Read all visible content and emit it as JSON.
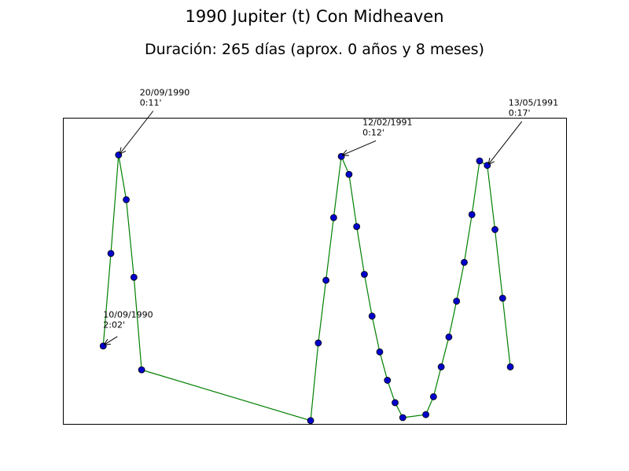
{
  "chart_data": {
    "type": "line",
    "title": "1990 Jupiter (t) Con Midheaven",
    "subtitle": "Duración: 265 días (aprox. 0 años y 8 meses)",
    "xlabel": "",
    "ylabel": "",
    "grid": false,
    "legend": "none",
    "x_axis": {
      "ticks_visible": false
    },
    "y_axis": {
      "ticks_visible": false
    },
    "series": [
      {
        "line_color": "#008000",
        "marker_color": "#0000cc",
        "points": [
          {
            "x": 1,
            "y": 0.24
          },
          {
            "x": 2,
            "y": 0.55
          },
          {
            "x": 3,
            "y": 0.88
          },
          {
            "x": 4,
            "y": 0.73
          },
          {
            "x": 5,
            "y": 0.47
          },
          {
            "x": 6,
            "y": 0.16
          },
          {
            "x": 28,
            "y": -0.01
          },
          {
            "x": 29,
            "y": 0.25
          },
          {
            "x": 30,
            "y": 0.46
          },
          {
            "x": 31,
            "y": 0.67
          },
          {
            "x": 32,
            "y": 0.875
          },
          {
            "x": 33,
            "y": 0.815
          },
          {
            "x": 34,
            "y": 0.64
          },
          {
            "x": 35,
            "y": 0.48
          },
          {
            "x": 36,
            "y": 0.34
          },
          {
            "x": 37,
            "y": 0.22
          },
          {
            "x": 38,
            "y": 0.125
          },
          {
            "x": 39,
            "y": 0.05
          },
          {
            "x": 40,
            "y": 0.0
          },
          {
            "x": 43,
            "y": 0.01
          },
          {
            "x": 44,
            "y": 0.07
          },
          {
            "x": 45,
            "y": 0.17
          },
          {
            "x": 46,
            "y": 0.27
          },
          {
            "x": 47,
            "y": 0.39
          },
          {
            "x": 48,
            "y": 0.52
          },
          {
            "x": 49,
            "y": 0.68
          },
          {
            "x": 50,
            "y": 0.86
          },
          {
            "x": 51,
            "y": 0.845
          },
          {
            "x": 52,
            "y": 0.63
          },
          {
            "x": 53,
            "y": 0.4
          },
          {
            "x": 54,
            "y": 0.17
          }
        ]
      }
    ],
    "annotations": [
      {
        "line1": "10/09/1990",
        "line2": "2:02'",
        "point_index": 0
      },
      {
        "line1": "20/09/1990",
        "line2": "0:11'",
        "point_index": 2
      },
      {
        "line1": "12/02/1991",
        "line2": "0:12'",
        "point_index": 10
      },
      {
        "line1": "13/05/1991",
        "line2": "0:17'",
        "point_index": 27
      }
    ]
  }
}
